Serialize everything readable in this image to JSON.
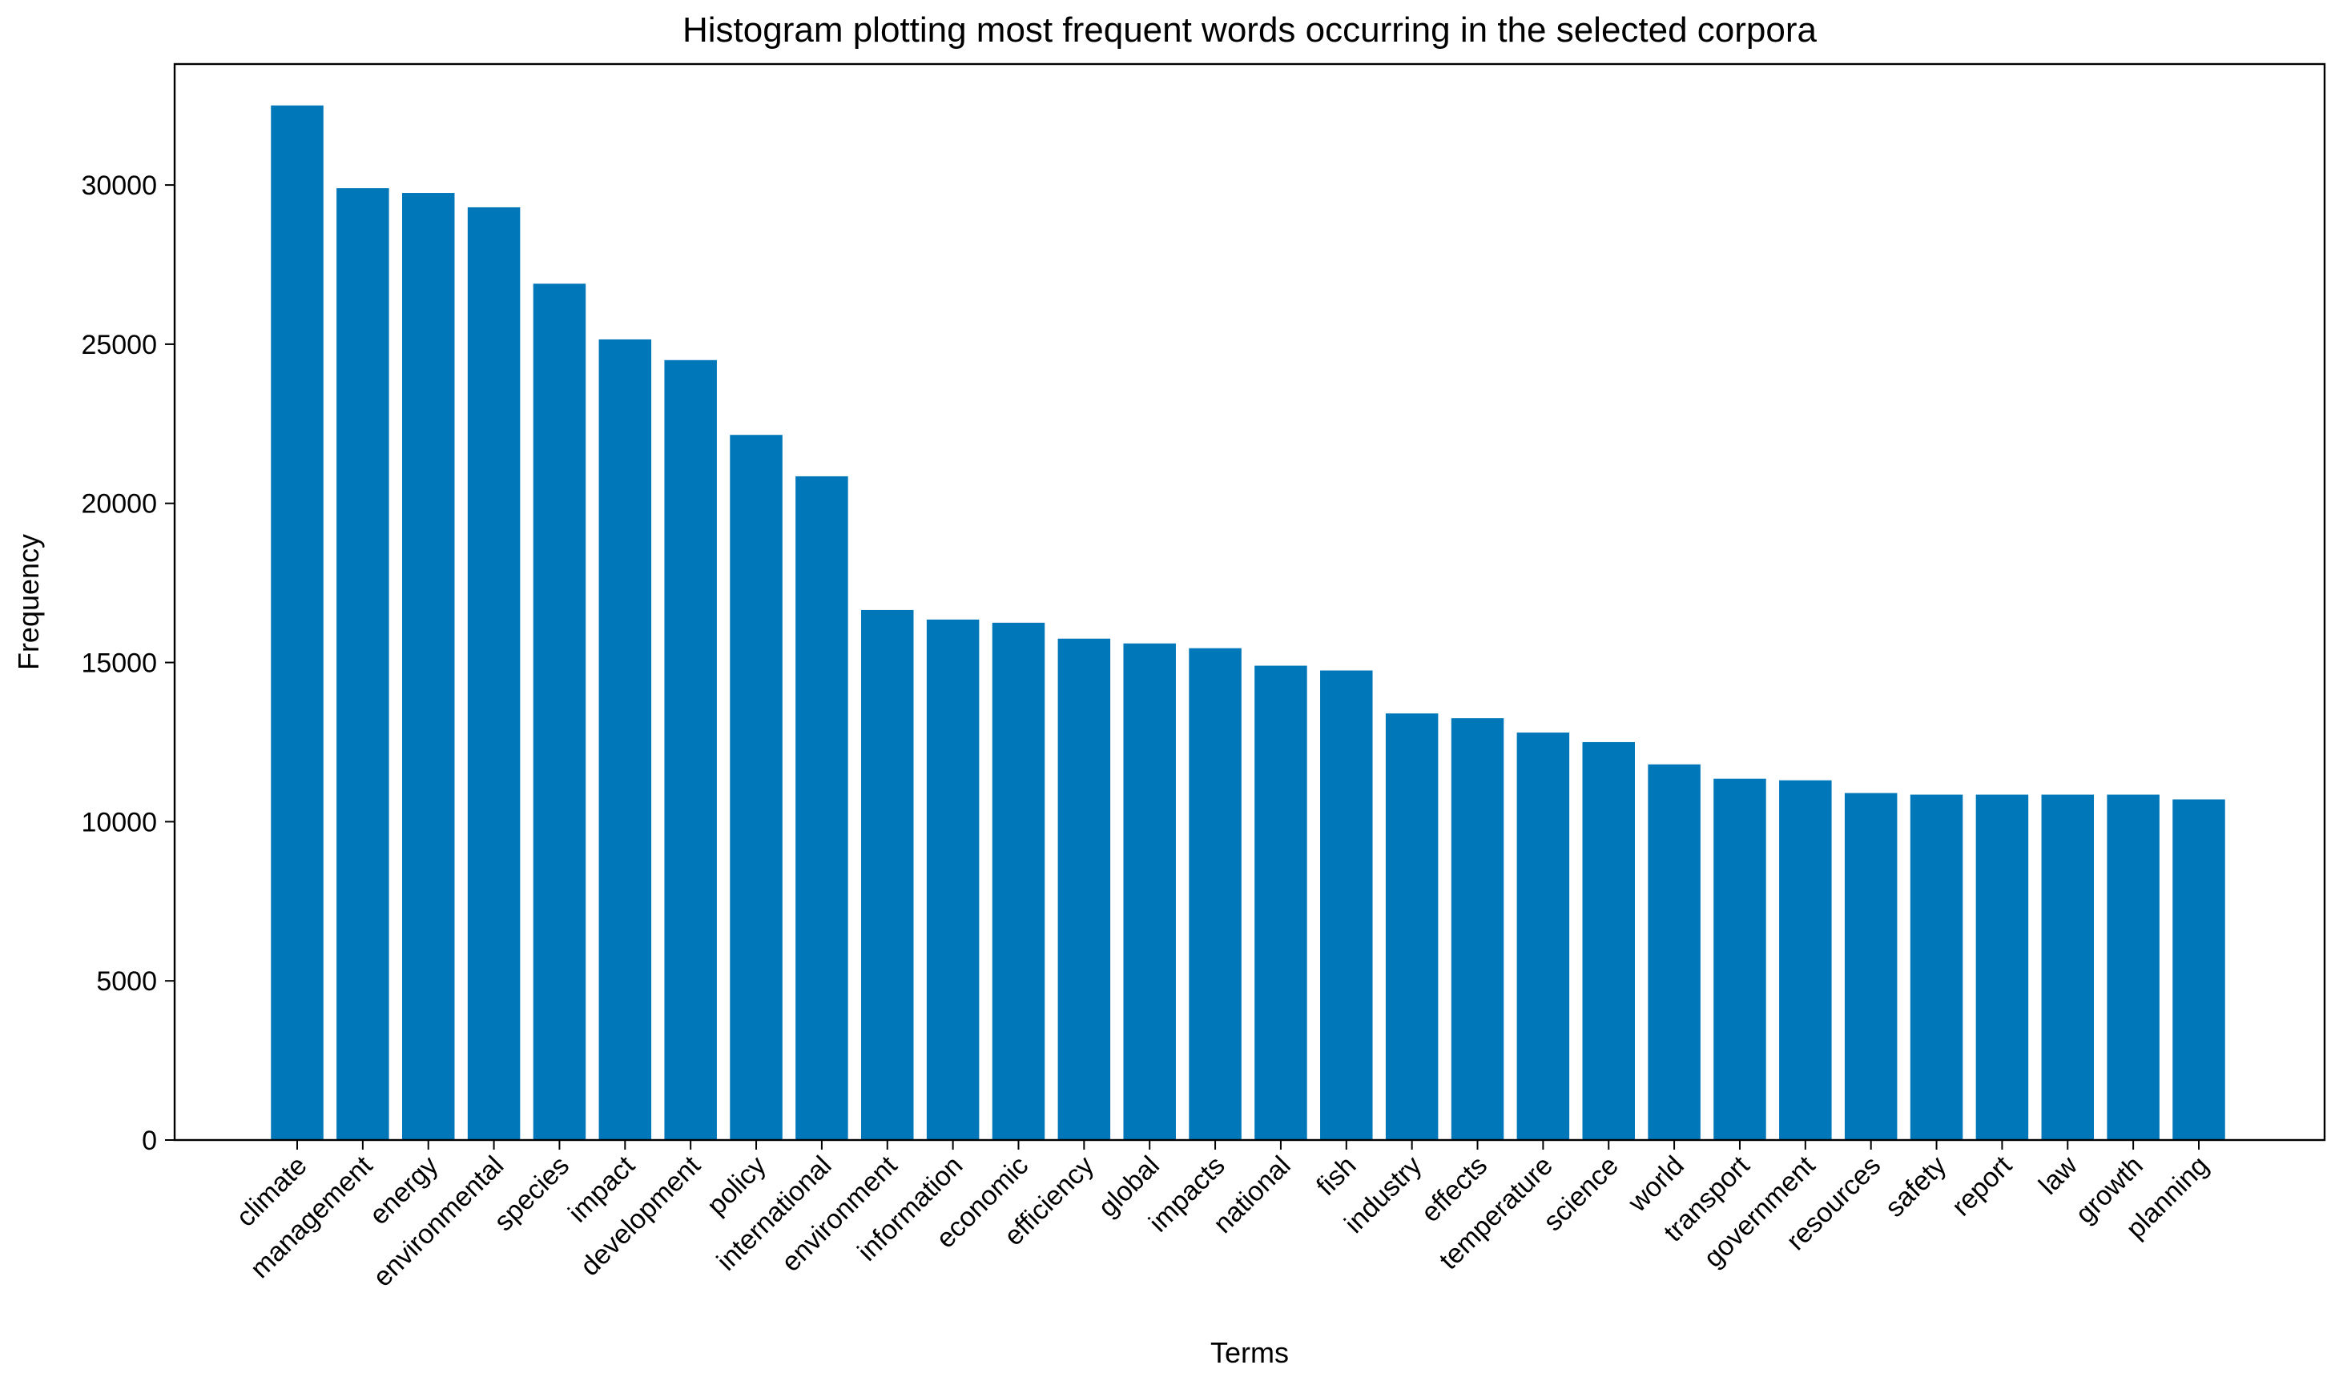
{
  "chart_data": {
    "type": "bar",
    "title": "Histogram plotting most frequent words occurring in the selected corpora",
    "xlabel": "Terms",
    "ylabel": "Frequency",
    "ylim": [
      0,
      33800
    ],
    "yticks": [
      0,
      5000,
      10000,
      15000,
      20000,
      25000,
      30000
    ],
    "grid": false,
    "bar_color": "#0077b9",
    "categories": [
      "climate",
      "management",
      "energy",
      "environmental",
      "species",
      "impact",
      "development",
      "policy",
      "international",
      "environment",
      "information",
      "economic",
      "efficiency",
      "global",
      "impacts",
      "national",
      "fish",
      "industry",
      "effects",
      "temperature",
      "science",
      "world",
      "transport",
      "government",
      "resources",
      "safety",
      "report",
      "law",
      "growth",
      "planning"
    ],
    "values": [
      32500,
      29900,
      29750,
      29300,
      26900,
      25150,
      24500,
      22150,
      20850,
      16650,
      16350,
      16250,
      15750,
      15600,
      15450,
      14900,
      14750,
      13400,
      13250,
      12800,
      12500,
      11800,
      11350,
      11300,
      10900,
      10850,
      10850,
      10850,
      10850,
      10700
    ]
  }
}
